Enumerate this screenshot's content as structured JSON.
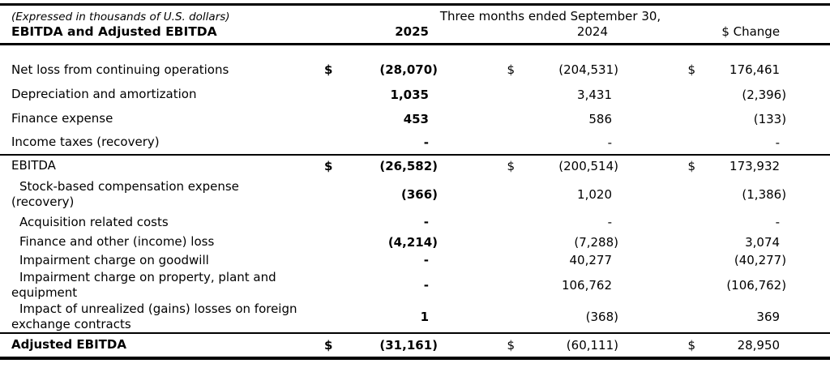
{
  "note": "(Expressed in thousands of U.S. dollars)",
  "title": "EBITDA and Adjusted EBITDA",
  "period_header": "Three months ended September 30,",
  "columns": {
    "y2025": "2025",
    "y2024": "2024",
    "change": "$ Change"
  },
  "rows": [
    {
      "label": "Net loss from continuing operations",
      "d1": "$",
      "v1": "(28,070)",
      "d2": "$",
      "v2": "(204,531)",
      "d3": "$",
      "v3": "176,461"
    },
    {
      "label": "Depreciation and amortization",
      "v1": "1,035",
      "v2": "3,431",
      "v3": "(2,396)"
    },
    {
      "label": "Finance expense",
      "v1": "453",
      "v2": "586",
      "v3": "(133)"
    },
    {
      "label": "Income taxes (recovery)",
      "v1": "-",
      "v2": "-",
      "v3": "-"
    },
    {
      "label": "EBITDA",
      "d1": "$",
      "v1": "(26,582)",
      "d2": "$",
      "v2": "(200,514)",
      "d3": "$",
      "v3": "173,932"
    },
    {
      "label": "Stock-based compensation expense",
      "label2": "(recovery)",
      "v1": "(366)",
      "v2": "1,020",
      "v3": "(1,386)"
    },
    {
      "label": "Acquisition related costs",
      "v1": "-",
      "v2": "-",
      "v3": "-"
    },
    {
      "label": "Finance and other (income) loss",
      "v1": "(4,214)",
      "v2": "(7,288)",
      "v3": "3,074"
    },
    {
      "label": "Impairment charge on goodwill",
      "v1": "-",
      "v2": "40,277",
      "v3": "(40,277)"
    },
    {
      "label": "Impairment charge on property, plant and",
      "label2": "equipment",
      "v1": "-",
      "v2": "106,762",
      "v3": "(106,762)"
    },
    {
      "label": "Impact of unrealized (gains) losses on foreign",
      "label2": "exchange contracts",
      "v1": "1",
      "v2": "(368)",
      "v3": "369"
    },
    {
      "label": "Adjusted EBITDA",
      "d1": "$",
      "v1": "(31,161)",
      "d2": "$",
      "v2": "(60,111)",
      "d3": "$",
      "v3": "28,950"
    }
  ]
}
